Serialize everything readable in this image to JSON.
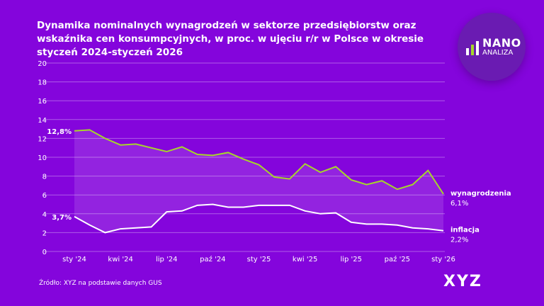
{
  "title": "Dynamika nominalnych wynagrodzeń w sektorze przedsiębiorstw oraz wskaźnika cen konsumpcyjnych, w proc. w ujęciu r/r w Polsce w okresie styczeń 2024-styczeń 2026",
  "logo": {
    "line1": "NANO",
    "line2": "ANALIZA"
  },
  "source": "Źródło: XYZ na podstawie danych GUS",
  "brand": "XYZ",
  "colors": {
    "background": "#8405dc",
    "wages": "#a6d62a",
    "inflation": "#ffffff"
  },
  "chart_data": {
    "type": "line",
    "title": "Dynamika nominalnych wynagrodzeń w sektorze przedsiębiorstw oraz wskaźnika cen konsumpcyjnych",
    "ylim": [
      0,
      20
    ],
    "yticks": [
      "0",
      "2",
      "4",
      "6",
      "8",
      "10",
      "12",
      "14",
      "16",
      "18",
      "20"
    ],
    "xtick_labels": [
      {
        "i": 0,
        "label": "sty '24"
      },
      {
        "i": 3,
        "label": "kwi '24"
      },
      {
        "i": 6,
        "label": "lip '24"
      },
      {
        "i": 9,
        "label": "paź '24"
      },
      {
        "i": 12,
        "label": "sty '25"
      },
      {
        "i": 15,
        "label": "kwi '25"
      },
      {
        "i": 18,
        "label": "lip '25"
      },
      {
        "i": 21,
        "label": "paź '25"
      },
      {
        "i": 24,
        "label": "sty '26"
      }
    ],
    "series": [
      {
        "name": "wynagrodzenia",
        "start_label": "12,8%",
        "end_label": "6,1%",
        "values": [
          12.8,
          12.9,
          12.0,
          11.3,
          11.4,
          11.0,
          10.6,
          11.1,
          10.3,
          10.2,
          10.5,
          9.8,
          9.2,
          7.9,
          7.7,
          9.3,
          8.4,
          9.0,
          7.6,
          7.1,
          7.5,
          6.6,
          7.1,
          8.6,
          6.1
        ]
      },
      {
        "name": "inflacja",
        "start_label": "3,7%",
        "end_label": "2,2%",
        "values": [
          3.7,
          2.8,
          2.0,
          2.4,
          2.5,
          2.6,
          4.2,
          4.3,
          4.9,
          5.0,
          4.7,
          4.7,
          4.9,
          4.9,
          4.9,
          4.3,
          4.0,
          4.1,
          3.1,
          2.9,
          2.9,
          2.8,
          2.5,
          2.4,
          2.2
        ]
      }
    ]
  }
}
